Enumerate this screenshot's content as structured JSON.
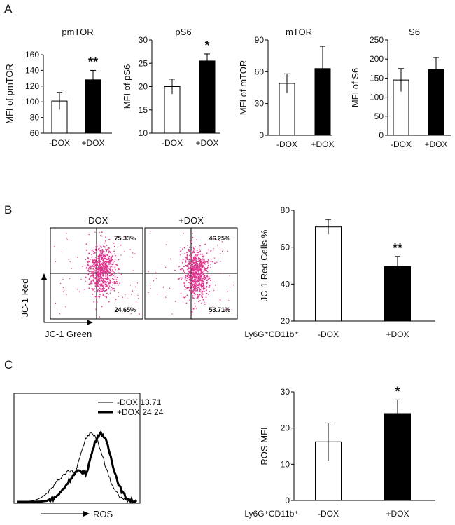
{
  "figure": {
    "panel_labels": [
      "A",
      "B",
      "C"
    ]
  },
  "chart_data": [
    {
      "type": "bar",
      "panel": "A",
      "title": "pmTOR",
      "ylabel": "MFI of pmTOR",
      "categories": [
        "-DOX",
        "+DOX"
      ],
      "values": [
        101,
        128
      ],
      "errors": [
        11,
        12
      ],
      "fills": [
        "#ffffff",
        "#000000"
      ],
      "ylim": [
        60,
        160
      ],
      "yticks": [
        60,
        80,
        100,
        120,
        140,
        160
      ],
      "annotations": [
        "",
        "**"
      ]
    },
    {
      "type": "bar",
      "panel": "A",
      "title": "pS6",
      "ylabel": "MFI of pS6",
      "categories": [
        "-DOX",
        "+DOX"
      ],
      "values": [
        20,
        25.5
      ],
      "errors": [
        1.6,
        1.5
      ],
      "fills": [
        "#ffffff",
        "#000000"
      ],
      "ylim": [
        10,
        30
      ],
      "yticks": [
        10,
        15,
        20,
        25,
        30
      ],
      "annotations": [
        "",
        "*"
      ]
    },
    {
      "type": "bar",
      "panel": "A",
      "title": "mTOR",
      "ylabel": "MFI of mTOR",
      "categories": [
        "-DOX",
        "+DOX"
      ],
      "values": [
        49,
        63
      ],
      "errors": [
        9,
        21
      ],
      "fills": [
        "#ffffff",
        "#000000"
      ],
      "ylim": [
        0,
        90
      ],
      "yticks": [
        0,
        30,
        60,
        90
      ],
      "annotations": [
        "",
        ""
      ]
    },
    {
      "type": "bar",
      "panel": "A",
      "title": "S6",
      "ylabel": "MFI of S6",
      "categories": [
        "-DOX",
        "+DOX"
      ],
      "values": [
        145,
        172
      ],
      "errors": [
        30,
        32
      ],
      "fills": [
        "#ffffff",
        "#000000"
      ],
      "ylim": [
        0,
        250
      ],
      "yticks": [
        0,
        50,
        100,
        150,
        200,
        250
      ],
      "annotations": [
        "",
        ""
      ]
    },
    {
      "type": "scatter",
      "panel": "B",
      "subtype": "flow-cytometry-quadrant",
      "title": "-DOX",
      "xlabel": "JC-1 Green",
      "ylabel": "JC-1 Red",
      "quadrants": {
        "upper_right": "75.33%",
        "lower_right": "24.65%"
      },
      "cluster_color": "#e0358e"
    },
    {
      "type": "scatter",
      "panel": "B",
      "subtype": "flow-cytometry-quadrant",
      "title": "+DOX",
      "quadrants": {
        "upper_right": "46.25%",
        "lower_right": "53.71%"
      },
      "cluster_color": "#e0358e"
    },
    {
      "type": "bar",
      "panel": "B",
      "ylabel": "JC-1 Red Cells %",
      "group_label": "Ly6G⁺CD11b⁺",
      "categories": [
        "-DOX",
        "+DOX"
      ],
      "values": [
        71,
        49.5
      ],
      "errors": [
        4,
        5.5
      ],
      "fills": [
        "#ffffff",
        "#000000"
      ],
      "ylim": [
        20,
        80
      ],
      "yticks": [
        20,
        40,
        60,
        80
      ],
      "annotations": [
        "",
        "**"
      ]
    },
    {
      "type": "line",
      "panel": "C",
      "subtype": "histogram-overlay",
      "xlabel": "ROS",
      "series": [
        {
          "name": "-DOX 13.71",
          "line": "thin",
          "peak_x": 0.62,
          "width": 0.15
        },
        {
          "name": "+DOX 24.24",
          "line": "thick",
          "peak_x": 0.7,
          "width": 0.13
        }
      ]
    },
    {
      "type": "bar",
      "panel": "C",
      "ylabel": "ROS MFI",
      "group_label": "Ly6G⁺CD11b⁺",
      "categories": [
        "-DOX",
        "+DOX"
      ],
      "values": [
        16.2,
        24
      ],
      "errors": [
        5.2,
        3.8
      ],
      "fills": [
        "#ffffff",
        "#000000"
      ],
      "ylim": [
        0,
        30
      ],
      "yticks": [
        0,
        10,
        20,
        30
      ],
      "annotations": [
        "",
        "*"
      ]
    }
  ]
}
